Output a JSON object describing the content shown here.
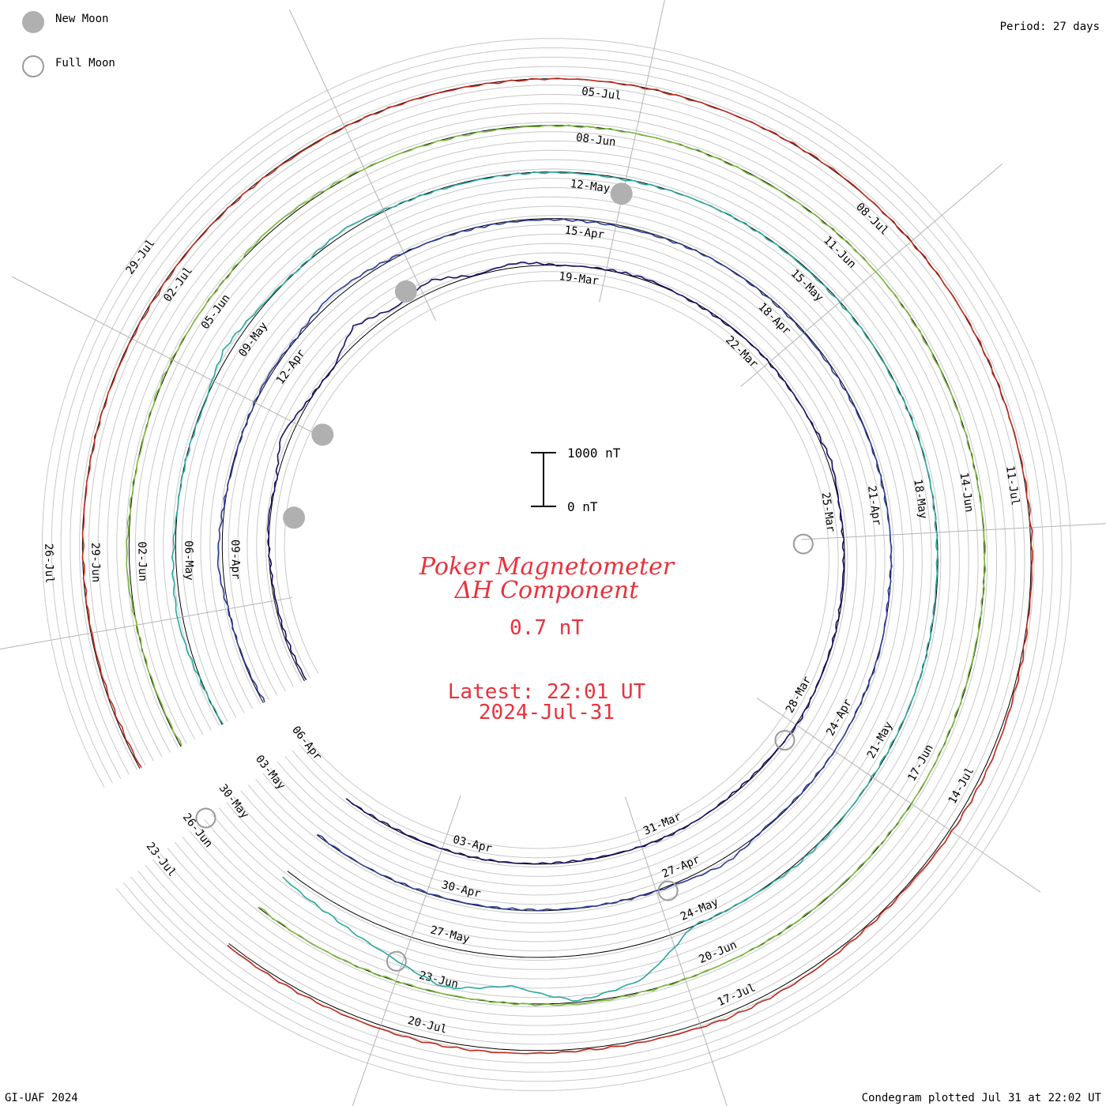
{
  "legend": {
    "new_moon": "New Moon",
    "full_moon": "Full Moon",
    "new_moon_color": "#b0b0b0",
    "full_moon_color": "#9a9a9a"
  },
  "period_label": "Period: 27 days",
  "scale_bar": {
    "top_label": "1000 nT",
    "bottom_label": "0 nT"
  },
  "title": {
    "line1": "Poker Magnetometer",
    "line2": "ΔH Component"
  },
  "current_value": "0.7 nT",
  "latest": {
    "time": "Latest: 22:01 UT",
    "date": "2024-Jul-31"
  },
  "footer": {
    "left": "GI-UAF 2024",
    "right": "Condegram plotted Jul 31 at 22:02 UT"
  },
  "chart_data": {
    "type": "line",
    "title": "Poker Magnetometer ΔH Component",
    "period_days": 27,
    "scale_nT": [
      0,
      1000
    ],
    "series": [
      {
        "color": "#1a1266",
        "date_labels": [
          "19-Mar",
          "22-Mar",
          "25-Mar",
          "28-Mar",
          "31-Mar",
          "03-Apr",
          "06-Apr",
          "09-Apr",
          "12-Apr"
        ],
        "values": [
          20,
          25,
          30,
          40,
          90,
          60,
          230,
          80,
          40,
          320,
          120,
          260,
          60,
          140,
          50,
          70,
          90,
          50,
          40,
          55,
          45,
          60,
          120,
          50,
          40,
          35,
          45,
          50,
          80,
          40,
          35,
          60,
          70,
          45,
          40,
          50,
          55,
          45,
          40,
          60
        ]
      },
      {
        "color": "#2e3c9c",
        "date_labels": [
          "15-Apr",
          "18-Apr",
          "21-Apr",
          "24-Apr",
          "27-Apr",
          "30-Apr",
          "03-May",
          "06-May",
          "09-May"
        ],
        "values": [
          30,
          45,
          60,
          150,
          90,
          40,
          60,
          90,
          70,
          160,
          110,
          60,
          45,
          40,
          35,
          30,
          40,
          55,
          45,
          40,
          35,
          40,
          50,
          45,
          60,
          40,
          70,
          55,
          60,
          45,
          40,
          160,
          80,
          60,
          45,
          40,
          50,
          45,
          55,
          40
        ]
      },
      {
        "color": "#2aa8a0",
        "date_labels": [
          "12-May",
          "15-May",
          "18-May",
          "21-May",
          "24-May",
          "27-May",
          "30-May",
          "02-Jun",
          "05-Jun"
        ],
        "values": [
          40,
          80,
          160,
          120,
          60,
          50,
          40,
          180,
          80,
          60,
          140,
          60,
          40,
          50,
          45,
          40,
          55,
          60,
          45,
          40,
          50,
          45,
          70,
          60,
          45,
          40,
          60,
          50,
          45,
          70,
          90,
          60,
          50,
          700,
          900,
          600,
          800,
          500,
          300,
          200
        ]
      },
      {
        "color": "#7cba3c",
        "date_labels": [
          "08-Jun",
          "11-Jun",
          "14-Jun",
          "17-Jun",
          "20-Jun",
          "23-Jun",
          "26-Jun",
          "29-Jun",
          "02-Jul"
        ],
        "values": [
          40,
          45,
          60,
          110,
          70,
          45,
          80,
          60,
          55,
          110,
          80,
          60,
          45,
          40,
          50,
          55,
          60,
          45,
          50,
          60,
          55,
          45,
          50,
          60,
          70,
          50,
          45,
          55,
          65,
          50,
          45,
          60,
          55,
          70,
          90,
          60,
          50,
          55,
          60,
          45
        ]
      },
      {
        "color": "#c02a1c",
        "date_labels": [
          "05-Jul",
          "08-Jul",
          "11-Jul",
          "14-Jul",
          "17-Jul",
          "20-Jul",
          "23-Jul",
          "26-Jul",
          "29-Jul"
        ],
        "values": [
          30,
          35,
          40,
          45,
          50,
          55,
          45,
          40,
          50,
          45,
          40,
          55,
          50,
          45,
          60,
          55,
          50,
          60,
          70,
          55,
          60,
          65,
          55,
          70,
          80,
          70,
          90,
          120,
          110,
          80,
          95,
          130,
          150,
          110,
          90,
          120,
          140,
          120,
          110,
          100
        ]
      }
    ]
  }
}
